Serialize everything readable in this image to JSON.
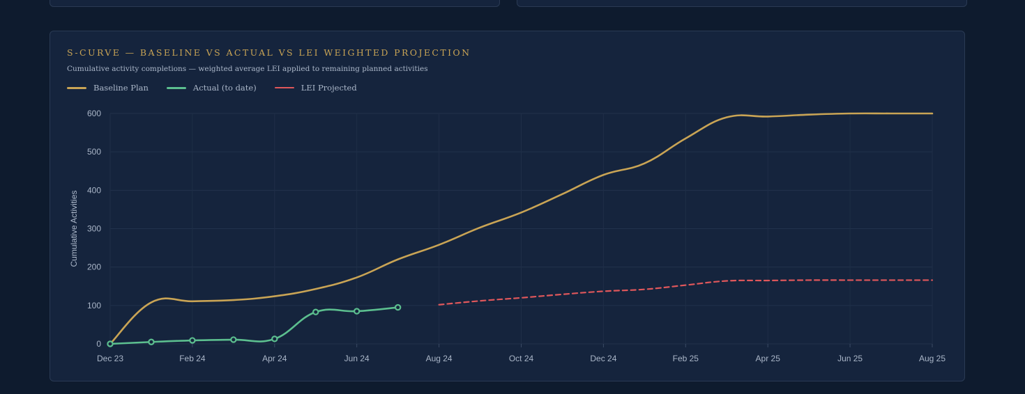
{
  "chart_data": {
    "type": "line",
    "title": "S-CURVE — BASELINE VS ACTUAL VS LEI WEIGHTED PROJECTION",
    "subtitle": "Cumulative activity completions — weighted average LEI applied to remaining planned activities",
    "ylabel": "Cumulative Activities",
    "xlabel": "",
    "ylim": [
      0,
      600
    ],
    "yticks": [
      "0",
      "100",
      "200",
      "300",
      "400",
      "500",
      "600"
    ],
    "x_tick_labels": [
      "Dec 23",
      "Feb 24",
      "Apr 24",
      "Jun 24",
      "Aug 24",
      "Oct 24",
      "Dec 24",
      "Feb 25",
      "Apr 25",
      "Jun 25",
      "Aug 25"
    ],
    "grid": true,
    "legend_position": "top-left",
    "series": [
      {
        "name": "Baseline Plan",
        "color": "#c9a455",
        "style": "solid",
        "x": [
          0,
          1,
          2,
          3,
          4,
          5,
          6,
          7,
          8,
          9,
          10,
          11,
          12,
          13,
          14,
          15,
          16,
          17,
          18,
          19,
          20
        ],
        "values": [
          0,
          108,
          111,
          114,
          124,
          143,
          173,
          220,
          258,
          303,
          342,
          390,
          440,
          470,
          535,
          590,
          592,
          597,
          600,
          600,
          600
        ]
      },
      {
        "name": "Actual (to date)",
        "color": "#5cbf8f",
        "style": "solid",
        "markers": true,
        "x": [
          0,
          1,
          2,
          3,
          4,
          5,
          6,
          7
        ],
        "values": [
          0,
          5,
          9,
          11,
          13,
          83,
          85,
          95
        ]
      },
      {
        "name": "LEI Projected",
        "color": "#e0575b",
        "style": "dashed",
        "x": [
          8,
          9,
          10,
          11,
          12,
          13,
          14,
          15,
          16,
          17,
          18,
          19,
          20
        ],
        "values": [
          102,
          112,
          120,
          129,
          137,
          142,
          153,
          164,
          165,
          166,
          166,
          166,
          166
        ]
      }
    ]
  }
}
